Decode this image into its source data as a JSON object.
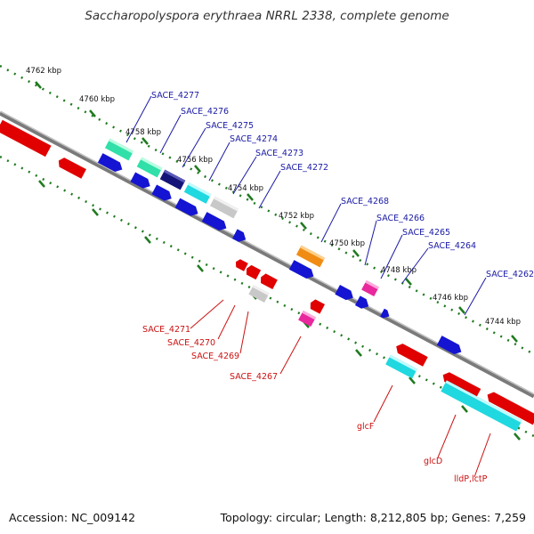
{
  "title": "Saccharopolyspora erythraea NRRL 2338, complete genome",
  "footer": {
    "accession": "Accession: NC_009142",
    "summary": "Topology: circular; Length: 8,212,805 bp; Genes: 7,259"
  },
  "colors": {
    "backbone": "#7a7a7a",
    "tick": "#1f7a1f",
    "forward_label": "#1a1aa6",
    "reverse_label": "#cc1111",
    "gene_blue": "#1414d2",
    "gene_red": "#e00000",
    "gene_teal": "#30e0a8",
    "gene_cyan": "#20d8e0",
    "gene_navy": "#141478",
    "gene_gray": "#c8c8c8",
    "gene_orange": "#f08c14",
    "gene_pink": "#e8289c"
  },
  "kbp_labels": [
    "4762 kbp",
    "4760 kbp",
    "4758 kbp",
    "4756 kbp",
    "4754 kbp",
    "4752 kbp",
    "4750 kbp",
    "4748 kbp",
    "4746 kbp",
    "4744 kbp"
  ],
  "forward_gene_labels": [
    "SACE_4277",
    "SACE_4276",
    "SACE_4275",
    "SACE_4274",
    "SACE_4273",
    "SACE_4272",
    "SACE_4268",
    "SACE_4266",
    "SACE_4265",
    "SACE_4264",
    "SACE_4262"
  ],
  "reverse_gene_labels": [
    "SACE_4271",
    "SACE_4270",
    "SACE_4269",
    "SACE_4267",
    "glcF",
    "glcD",
    "lldP,lctP"
  ]
}
